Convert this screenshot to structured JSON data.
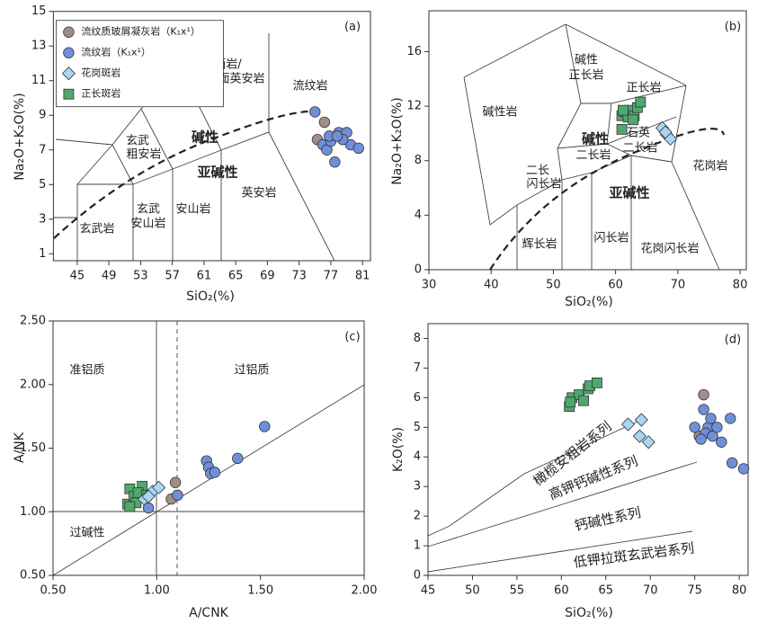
{
  "chart_data": [
    {
      "type": "scatter",
      "x_label": "SiO₂(%)",
      "y_label": "Na₂O+K₂O(%)",
      "xlim": [
        42,
        82
      ],
      "ylim": [
        0.6,
        15
      ],
      "xticks": [
        45,
        49,
        53,
        57,
        61,
        65,
        69,
        73,
        77,
        81
      ],
      "yticks": [
        1,
        3,
        5,
        7,
        9,
        11,
        13,
        15
      ],
      "legend": "upper left",
      "annotations": [
        "(a)",
        "流纹岩",
        "粗面岩/",
        "粗面英安岩",
        "玄武",
        "粗安岩",
        "碱性",
        "亚碱性",
        "英安岩",
        "安山岩",
        "玄武",
        "安山岩",
        "玄武岩"
      ],
      "series": [
        {
          "name": "流纹质玻屑凝灰岩（K₁x¹）",
          "color": "#a08e86",
          "marker": "circle",
          "x": [
            76.2,
            75.3
          ],
          "y": [
            8.6,
            7.6
          ]
        },
        {
          "name": "流纹岩（K₁x¹）",
          "color": "#6f8fd8",
          "marker": "circle",
          "x": [
            75,
            76,
            76.5,
            77,
            77.5,
            78,
            79,
            79.5,
            80.5,
            76.8,
            78.5,
            77.8
          ],
          "y": [
            9.2,
            7.3,
            7,
            7.5,
            6.3,
            8,
            8,
            7.3,
            7.1,
            7.8,
            7.6,
            7.8
          ]
        },
        {
          "name": "花岗斑岩",
          "color": "#a9d6f2",
          "marker": "diamond",
          "x": [],
          "y": []
        },
        {
          "name": "正长斑岩",
          "color": "#4fa86c",
          "marker": "square",
          "x": [],
          "y": []
        }
      ]
    },
    {
      "type": "scatter",
      "x_label": "SiO₂(%)",
      "y_label": "Na₂O+K₂O(%)",
      "xlim": [
        30,
        81
      ],
      "ylim": [
        0,
        19
      ],
      "xticks": [
        30,
        40,
        50,
        60,
        70,
        80
      ],
      "yticks": [
        0,
        4,
        8,
        12,
        16
      ],
      "annotations": [
        "(b)",
        "碱性岩",
        "碱性",
        "正长岩",
        "正长岩",
        "碱性",
        "石英",
        "二长岩",
        "二长岩",
        "二长",
        "闪长岩",
        "亚碱性",
        "花岗岩",
        "辉长岩",
        "闪长岩",
        "花岗闪长岩"
      ],
      "series": [
        {
          "color": "#4fa86c",
          "marker": "square",
          "x": [
            61,
            61,
            61.5,
            62,
            62.3,
            63,
            62.8,
            63.5,
            64,
            61.2
          ],
          "y": [
            10.3,
            11.3,
            11.6,
            11.2,
            11.7,
            11.3,
            11.0,
            11.9,
            12.3,
            11.7
          ]
        },
        {
          "color": "#a9d6f2",
          "marker": "diamond",
          "x": [
            67.5,
            68.2,
            68.8,
            68
          ],
          "y": [
            10.4,
            9.9,
            9.6,
            10.1
          ]
        }
      ]
    },
    {
      "type": "scatter",
      "x_label": "A/CNK",
      "y_label": "A/NK",
      "xlim": [
        0.5,
        2
      ],
      "ylim": [
        0.5,
        2.5
      ],
      "xticks": [
        {
          "value": 0.5,
          "label": "0.50"
        },
        {
          "value": 1,
          "label": "1.00"
        },
        {
          "value": 1.5,
          "label": "1.50"
        },
        {
          "value": 2,
          "label": "2.00"
        }
      ],
      "yticks": [
        {
          "value": 0.5,
          "label": "0.50"
        },
        {
          "value": 1,
          "label": "1.00"
        },
        {
          "value": 1.5,
          "label": "1.50"
        },
        {
          "value": 2,
          "label": "2.00"
        },
        {
          "value": 2.5,
          "label": "2.50"
        }
      ],
      "annotations": [
        "(c)",
        "准铝质",
        "过铝质",
        "过碱性"
      ],
      "series": [
        {
          "color": "#4fa86c",
          "marker": "square",
          "x": [
            0.86,
            0.87,
            0.89,
            0.9,
            0.93,
            0.91,
            0.87,
            0.95
          ],
          "y": [
            1.06,
            1.18,
            1.12,
            1.07,
            1.2,
            1.15,
            1.04,
            1.13
          ]
        },
        {
          "color": "#a9d6f2",
          "marker": "diamond",
          "x": [
            0.94,
            0.98,
            1.01,
            0.96
          ],
          "y": [
            1.1,
            1.16,
            1.19,
            1.12
          ]
        },
        {
          "color": "#a08e86",
          "marker": "circle",
          "x": [
            1.09,
            1.07
          ],
          "y": [
            1.23,
            1.1
          ]
        },
        {
          "color": "#6f8fd8",
          "marker": "circle",
          "x": [
            1.1,
            1.24,
            1.25,
            1.26,
            1.28,
            1.39,
            1.52,
            0.96
          ],
          "y": [
            1.13,
            1.4,
            1.35,
            1.3,
            1.31,
            1.42,
            1.67,
            1.03
          ]
        }
      ]
    },
    {
      "type": "scatter",
      "x_label": "SiO₂(%)",
      "y_label": "K₂O(%)",
      "xlim": [
        45,
        81
      ],
      "ylim": [
        0,
        8.5
      ],
      "xticks": [
        45,
        50,
        55,
        60,
        65,
        70,
        75,
        80
      ],
      "yticks": [
        0,
        1,
        2,
        3,
        4,
        5,
        6,
        7,
        8
      ],
      "annotations": [
        "(d)",
        "橄榄安粗岩系列",
        "高钾钙碱性系列",
        "钙碱性系列",
        "低钾拉斑玄武岩系列"
      ],
      "series": [
        {
          "color": "#4fa86c",
          "marker": "square",
          "x": [
            60.9,
            61.2,
            62,
            62.5,
            63,
            63.2,
            64,
            61
          ],
          "y": [
            5.7,
            6.0,
            6.1,
            5.9,
            6.3,
            6.4,
            6.5,
            5.85
          ]
        },
        {
          "color": "#a9d6f2",
          "marker": "diamond",
          "x": [
            67.5,
            69,
            68.8,
            69.8
          ],
          "y": [
            5.1,
            5.25,
            4.7,
            4.5
          ]
        },
        {
          "color": "#a08e86",
          "marker": "circle",
          "x": [
            76,
            75.5
          ],
          "y": [
            6.1,
            4.7
          ]
        },
        {
          "color": "#6f8fd8",
          "marker": "circle",
          "x": [
            75,
            76,
            76.5,
            76.2,
            77,
            77.5,
            78,
            79,
            79.2,
            80.5,
            76.8,
            75.7
          ],
          "y": [
            5.0,
            5.6,
            5.0,
            4.8,
            4.7,
            5.0,
            4.5,
            5.3,
            3.8,
            3.6,
            5.3,
            4.6
          ]
        }
      ]
    }
  ]
}
